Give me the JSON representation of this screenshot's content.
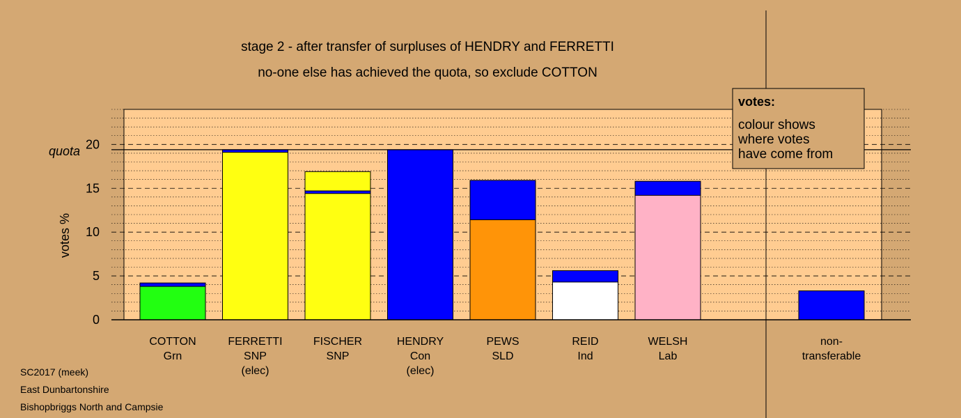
{
  "chart_data": {
    "type": "bar",
    "stacked": true,
    "title_lines": [
      "stage 2 - after transfer of surpluses of HENDRY and FERRETTI",
      "no-one else has achieved the quota, so exclude COTTON"
    ],
    "ylabel": "votes %",
    "ylim": [
      0,
      24
    ],
    "yticks": [
      0,
      5,
      10,
      15,
      20
    ],
    "quota": 19.4,
    "quota_label": "quota",
    "candidates": [
      {
        "lines": [
          "COTTON",
          "Grn"
        ],
        "segments": [
          {
            "value": 3.8,
            "color": "#22ff11"
          },
          {
            "value": 0.4,
            "color": "#0000ff"
          }
        ]
      },
      {
        "lines": [
          "FERRETTI",
          "SNP",
          "(elec)"
        ],
        "segments": [
          {
            "value": 19.1,
            "color": "#ffff11"
          },
          {
            "value": 0.3,
            "color": "#0000ff"
          }
        ]
      },
      {
        "lines": [
          "FISCHER",
          "SNP"
        ],
        "segments": [
          {
            "value": 14.4,
            "color": "#ffff11"
          },
          {
            "value": 0.3,
            "color": "#0000ff"
          },
          {
            "value": 2.2,
            "color": "#ffff11"
          }
        ]
      },
      {
        "lines": [
          "HENDRY",
          "Con",
          "(elec)"
        ],
        "segments": [
          {
            "value": 19.4,
            "color": "#0000ff"
          }
        ]
      },
      {
        "lines": [
          "PEWS",
          "SLD"
        ],
        "segments": [
          {
            "value": 11.4,
            "color": "#ff9408"
          },
          {
            "value": 4.5,
            "color": "#0000ff"
          }
        ]
      },
      {
        "lines": [
          "REID",
          "Ind"
        ],
        "segments": [
          {
            "value": 4.3,
            "color": "#ffffff"
          },
          {
            "value": 1.3,
            "color": "#0000ff"
          }
        ]
      },
      {
        "lines": [
          "WELSH",
          "Lab"
        ],
        "segments": [
          {
            "value": 14.2,
            "color": "#ffb2c6"
          },
          {
            "value": 1.6,
            "color": "#0000ff"
          }
        ]
      }
    ],
    "nontransferable": {
      "lines": [
        "non-",
        "transferable"
      ],
      "segments": [
        {
          "value": 3.3,
          "color": "#0000ff"
        }
      ]
    },
    "legend": {
      "title": "votes:",
      "lines": [
        "colour shows",
        "where votes",
        "have come from"
      ]
    },
    "footer": [
      "SC2017 (meek)",
      "East Dunbartonshire",
      "Bishopbriggs North and Campsie"
    ],
    "colors": {
      "background": "#d4a873",
      "plot_background": "#ffcc91"
    }
  }
}
